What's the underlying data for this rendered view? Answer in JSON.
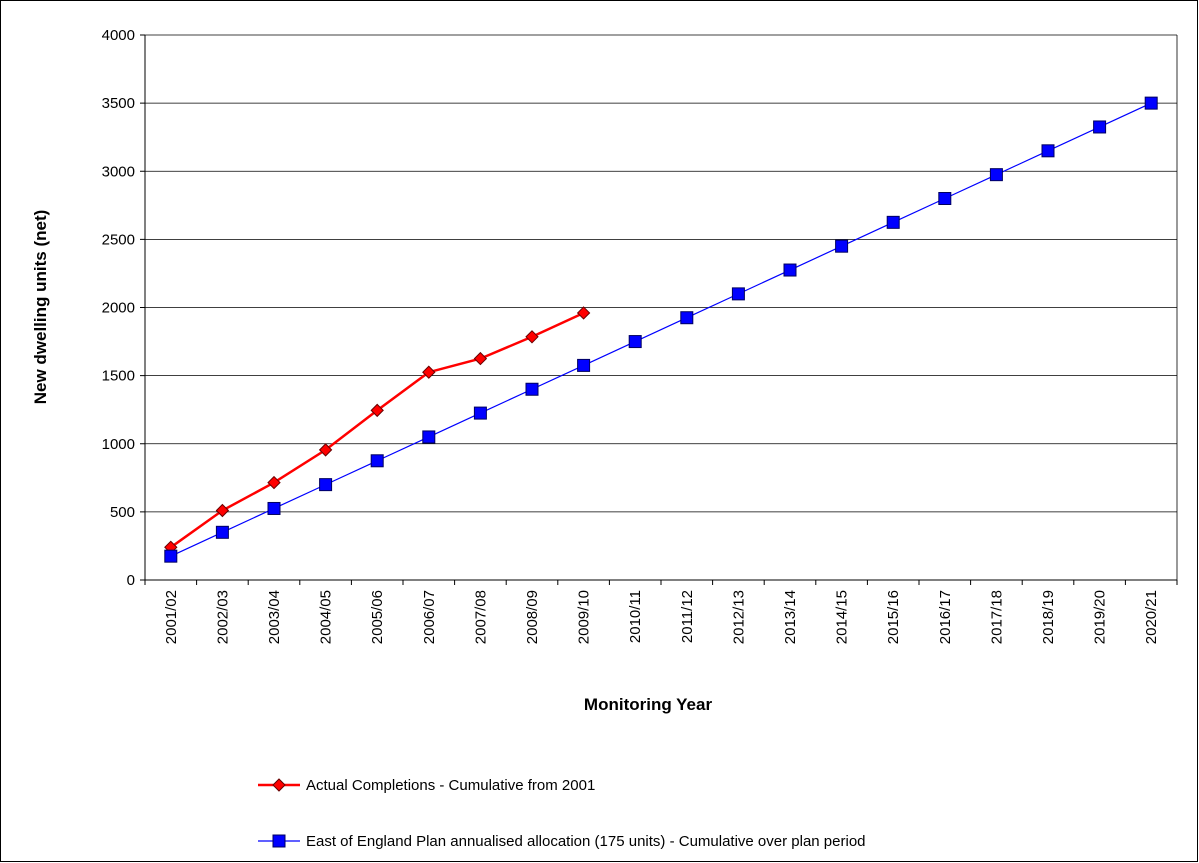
{
  "chart_data": {
    "type": "line",
    "ylabel": "New dwelling units (net)",
    "xlabel": "Monitoring Year",
    "categories": [
      "2001/02",
      "2002/03",
      "2003/04",
      "2004/05",
      "2005/06",
      "2006/07",
      "2007/08",
      "2008/09",
      "2009/10",
      "2010/11",
      "2011/12",
      "2012/13",
      "2013/14",
      "2014/15",
      "2015/16",
      "2016/17",
      "2017/18",
      "2018/19",
      "2019/20",
      "2020/21"
    ],
    "series": [
      {
        "name": "Actual Completions - Cumulative from 2001",
        "color": "#ff0000",
        "marker": "diamond",
        "values": [
          240,
          510,
          715,
          955,
          1245,
          1525,
          1625,
          1785,
          1960,
          null,
          null,
          null,
          null,
          null,
          null,
          null,
          null,
          null,
          null,
          null
        ]
      },
      {
        "name": "East of England Plan annualised allocation (175 units) -  Cumulative over plan period",
        "color": "#0000ff",
        "marker": "square",
        "values": [
          175,
          350,
          525,
          700,
          875,
          1050,
          1225,
          1400,
          1575,
          1750,
          1925,
          2100,
          2275,
          2450,
          2625,
          2800,
          2975,
          3150,
          3325,
          3500
        ]
      }
    ],
    "ylim": [
      0,
      4000
    ],
    "yticks": [
      0,
      500,
      1000,
      1500,
      2000,
      2500,
      3000,
      3500,
      4000
    ],
    "grid": true,
    "legend": "bottom"
  }
}
